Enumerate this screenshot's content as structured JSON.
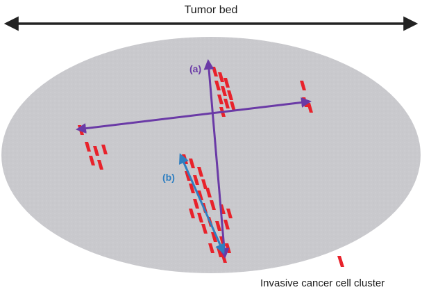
{
  "title": "Tumor bed",
  "label_a": "(a)",
  "label_b": "(b)",
  "legend": {
    "text": "Invasive cancer cell cluster",
    "marker": "red-cell-cluster-icon"
  },
  "colors": {
    "ellipse_fill": "#c9c9cd",
    "cell": "#e8222b",
    "arrow_purple": "#6a3aa6",
    "arrow_blue": "#2f7fc1",
    "axis_arrow": "#222222"
  }
}
